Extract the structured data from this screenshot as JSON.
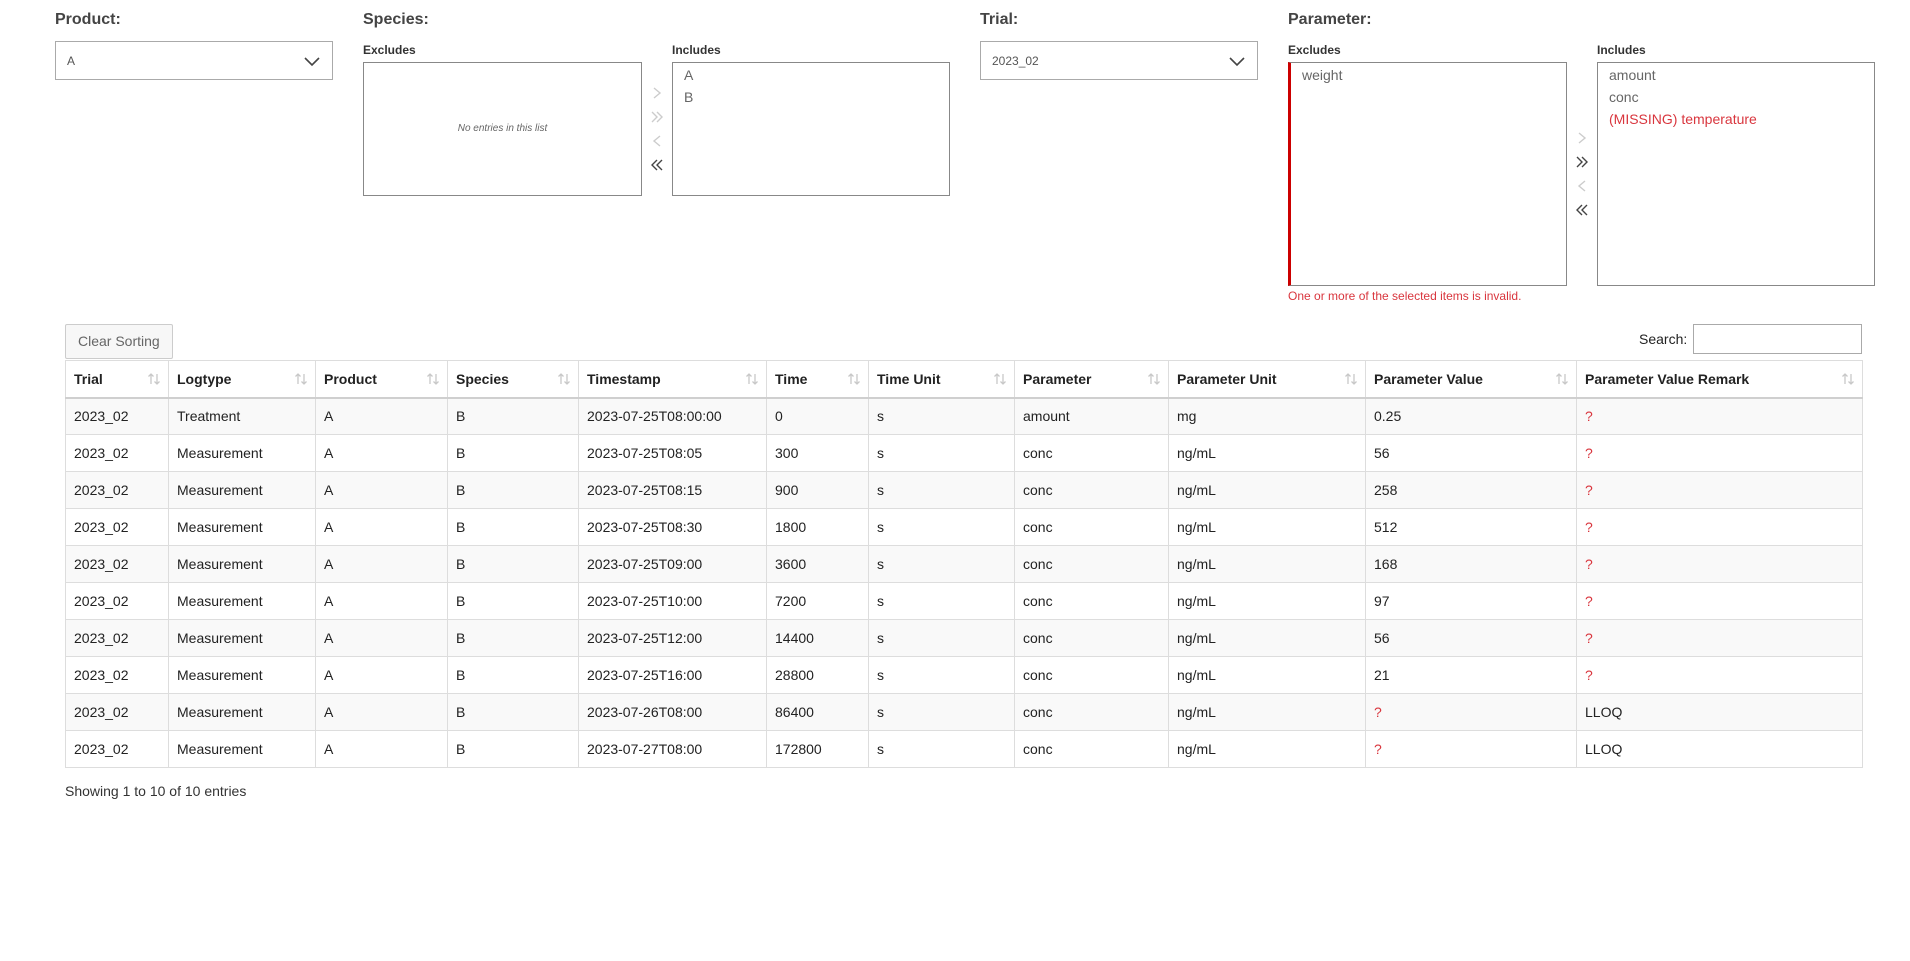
{
  "filters": {
    "product": {
      "label": "Product:",
      "value": "A"
    },
    "species": {
      "label": "Species:",
      "excludes_label": "Excludes",
      "includes_label": "Includes",
      "excludes_empty": "No entries in this list",
      "includes": [
        "A",
        "B"
      ]
    },
    "trial": {
      "label": "Trial:",
      "value": "2023_02"
    },
    "parameter": {
      "label": "Parameter:",
      "excludes_label": "Excludes",
      "includes_label": "Includes",
      "excludes": [
        "weight"
      ],
      "includes": [
        "amount",
        "conc",
        "(MISSING) temperature"
      ],
      "error": "One or more of the selected items is invalid."
    }
  },
  "table": {
    "clear_sorting": "Clear Sorting",
    "search_label": "Search:",
    "search_value": "",
    "columns": [
      "Trial",
      "Logtype",
      "Product",
      "Species",
      "Timestamp",
      "Time",
      "Time Unit",
      "Parameter",
      "Parameter Unit",
      "Parameter Value",
      "Parameter Value Remark"
    ],
    "rows": [
      [
        "2023_02",
        "Treatment",
        "A",
        "B",
        "2023-07-25T08:00:00",
        "0",
        "s",
        "amount",
        "mg",
        "0.25",
        "?"
      ],
      [
        "2023_02",
        "Measurement",
        "A",
        "B",
        "2023-07-25T08:05",
        "300",
        "s",
        "conc",
        "ng/mL",
        "56",
        "?"
      ],
      [
        "2023_02",
        "Measurement",
        "A",
        "B",
        "2023-07-25T08:15",
        "900",
        "s",
        "conc",
        "ng/mL",
        "258",
        "?"
      ],
      [
        "2023_02",
        "Measurement",
        "A",
        "B",
        "2023-07-25T08:30",
        "1800",
        "s",
        "conc",
        "ng/mL",
        "512",
        "?"
      ],
      [
        "2023_02",
        "Measurement",
        "A",
        "B",
        "2023-07-25T09:00",
        "3600",
        "s",
        "conc",
        "ng/mL",
        "168",
        "?"
      ],
      [
        "2023_02",
        "Measurement",
        "A",
        "B",
        "2023-07-25T10:00",
        "7200",
        "s",
        "conc",
        "ng/mL",
        "97",
        "?"
      ],
      [
        "2023_02",
        "Measurement",
        "A",
        "B",
        "2023-07-25T12:00",
        "14400",
        "s",
        "conc",
        "ng/mL",
        "56",
        "?"
      ],
      [
        "2023_02",
        "Measurement",
        "A",
        "B",
        "2023-07-25T16:00",
        "28800",
        "s",
        "conc",
        "ng/mL",
        "21",
        "?"
      ],
      [
        "2023_02",
        "Measurement",
        "A",
        "B",
        "2023-07-26T08:00",
        "86400",
        "s",
        "conc",
        "ng/mL",
        "?",
        "LLOQ"
      ],
      [
        "2023_02",
        "Measurement",
        "A",
        "B",
        "2023-07-27T08:00",
        "172800",
        "s",
        "conc",
        "ng/mL",
        "?",
        "LLOQ"
      ]
    ],
    "info": "Showing 1 to 10 of 10 entries"
  },
  "colors": {
    "error": "#d9363e",
    "invalid_border": "#cc0000"
  },
  "icons": {
    "dropdown": "chevron-down-icon",
    "move_right": "chevron-right-icon",
    "move_all_right": "double-chevron-right-icon",
    "move_left": "chevron-left-icon",
    "move_all_left": "double-chevron-left-icon",
    "sort": "sort-icon"
  }
}
